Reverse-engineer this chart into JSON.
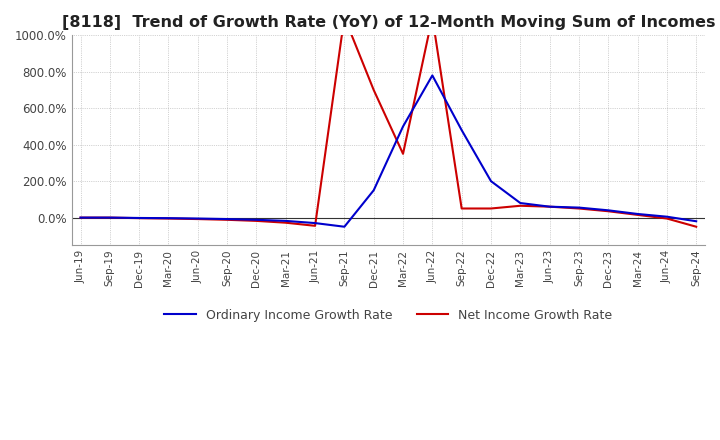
{
  "title": "[8118]  Trend of Growth Rate (YoY) of 12-Month Moving Sum of Incomes",
  "title_fontsize": 11.5,
  "ylim": [
    -150,
    1000
  ],
  "yticks": [
    0,
    200,
    400,
    600,
    800,
    1000
  ],
  "background_color": "#ffffff",
  "grid_color": "#aaaaaa",
  "legend_labels": [
    "Ordinary Income Growth Rate",
    "Net Income Growth Rate"
  ],
  "legend_colors": [
    "#0000cc",
    "#cc0000"
  ],
  "x_labels": [
    "Jun-19",
    "Sep-19",
    "Dec-19",
    "Mar-20",
    "Jun-20",
    "Sep-20",
    "Dec-20",
    "Mar-21",
    "Jun-21",
    "Sep-21",
    "Dec-21",
    "Mar-22",
    "Jun-22",
    "Sep-22",
    "Dec-22",
    "Mar-23",
    "Jun-23",
    "Sep-23",
    "Dec-23",
    "Mar-24",
    "Jun-24",
    "Sep-24"
  ],
  "ordinary_income_growth": [
    0.0,
    0.0,
    -2.0,
    -3.0,
    -5.0,
    -8.0,
    -12.0,
    -18.0,
    -30.0,
    -50.0,
    150.0,
    500.0,
    780.0,
    480.0,
    200.0,
    80.0,
    60.0,
    55.0,
    40.0,
    20.0,
    5.0,
    -20.0
  ],
  "net_income_growth": [
    0.0,
    0.0,
    -3.0,
    -5.0,
    -8.0,
    -12.0,
    -18.0,
    -28.0,
    -45.0,
    1100.0,
    700.0,
    350.0,
    1100.0,
    50.0,
    50.0,
    65.0,
    60.0,
    50.0,
    35.0,
    15.0,
    -5.0,
    -50.0
  ]
}
